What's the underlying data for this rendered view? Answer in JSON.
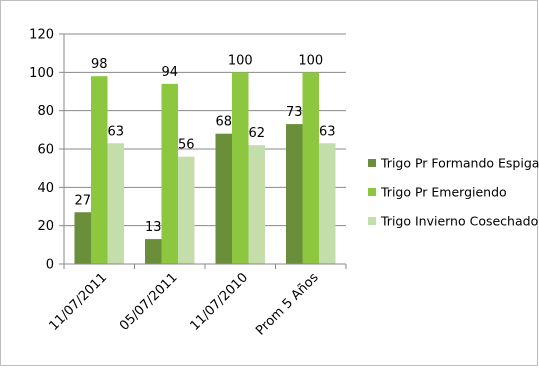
{
  "chart_data": {
    "type": "bar",
    "title": "",
    "xlabel": "",
    "ylabel": "",
    "ylim": [
      0,
      120
    ],
    "yticks": [
      0,
      20,
      40,
      60,
      80,
      100,
      120
    ],
    "grid": true,
    "legend_position": "right",
    "categories": [
      "11/07/2011",
      "05/07/2011",
      "11/07/2010",
      "Prom 5 Años"
    ],
    "series": [
      {
        "name": "Trigo Pr Formando Espiga",
        "color": "#6b8e3a",
        "values": [
          27,
          13,
          68,
          73
        ]
      },
      {
        "name": "Trigo Pr Emergiendo",
        "color": "#8dc63f",
        "values": [
          98,
          94,
          100,
          100
        ]
      },
      {
        "name": "Trigo Invierno Cosechado",
        "color": "#c3deaa",
        "values": [
          63,
          56,
          62,
          63
        ]
      }
    ]
  }
}
